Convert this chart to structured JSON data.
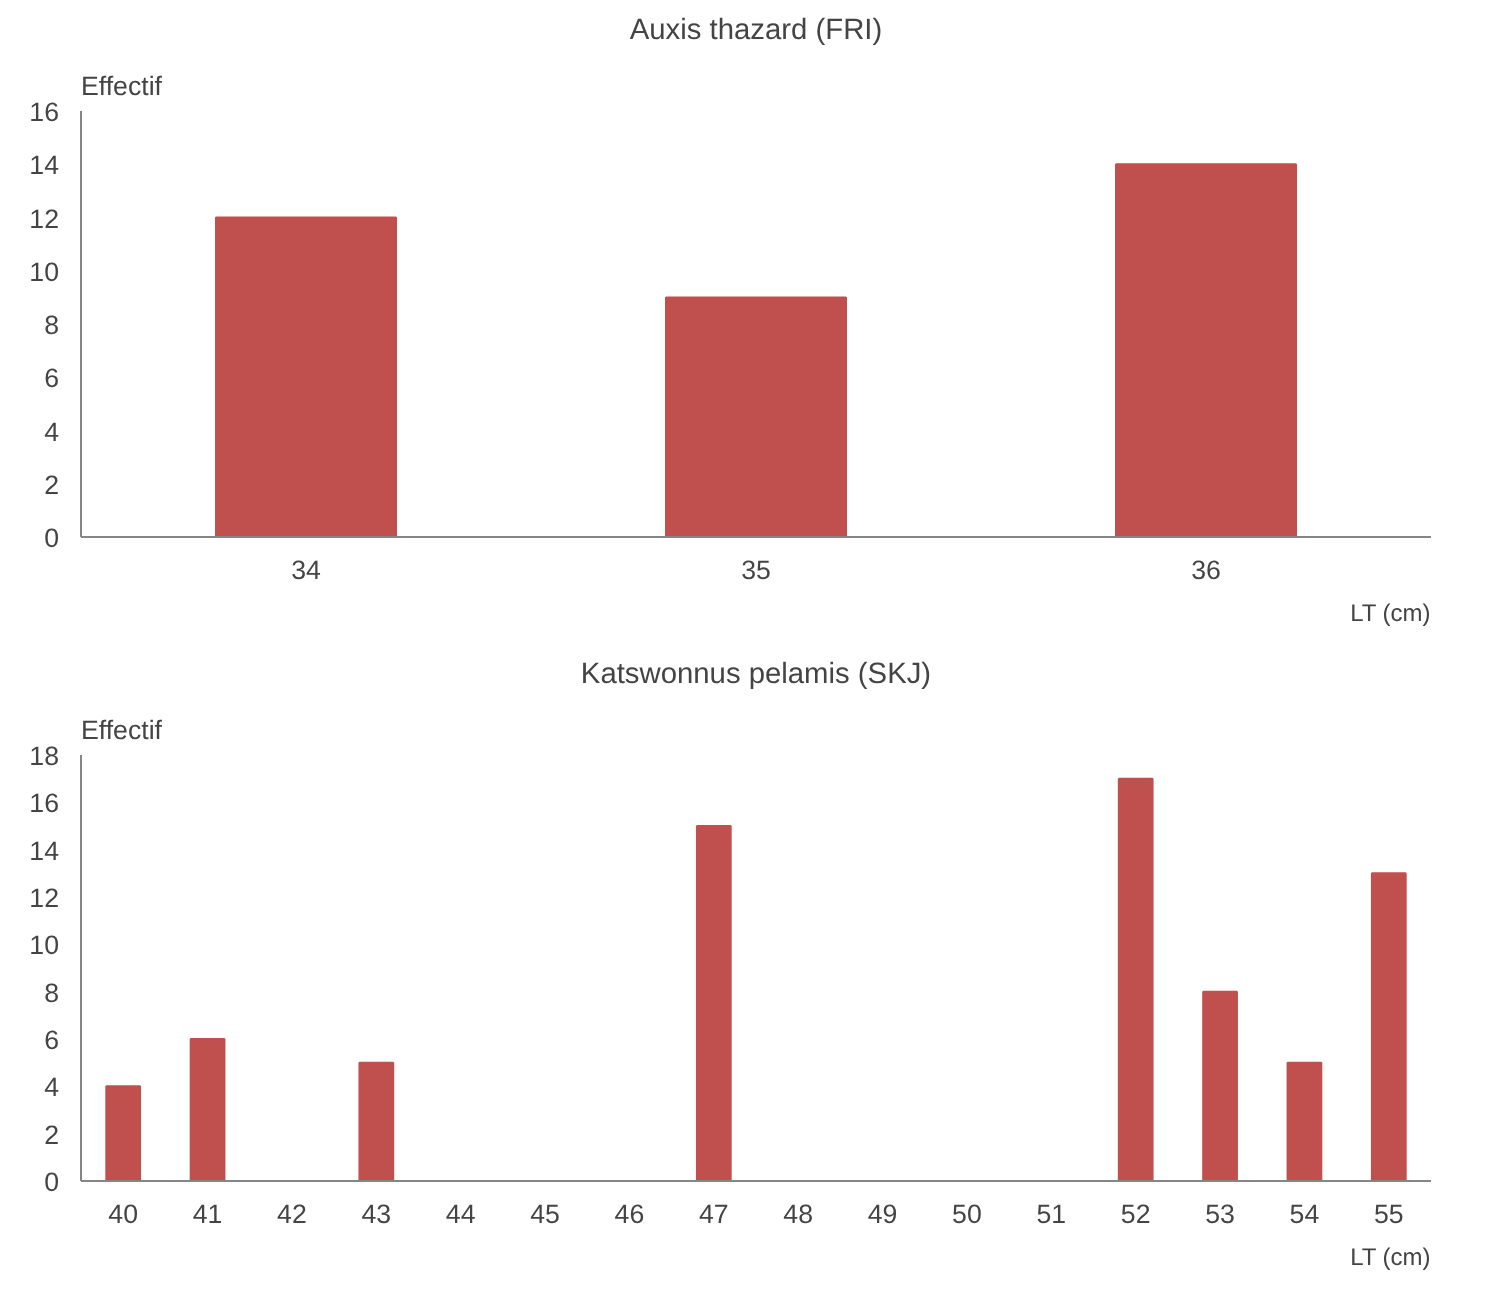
{
  "chart_data": [
    {
      "type": "bar",
      "title": "Auxis thazard (FRI)",
      "xlabel": "LT (cm)",
      "ylabel": "Effectif",
      "categories": [
        "34",
        "35",
        "36"
      ],
      "values": [
        12,
        9,
        14
      ],
      "color": "#c0504d",
      "ylim": [
        0,
        16
      ],
      "yticks": [
        0,
        2,
        4,
        6,
        8,
        10,
        12,
        14,
        16
      ],
      "grid": false
    },
    {
      "type": "bar",
      "title": "Katswonnus pelamis (SKJ)",
      "xlabel": "LT (cm)",
      "ylabel": "Effectif",
      "categories": [
        "40",
        "41",
        "42",
        "43",
        "44",
        "45",
        "46",
        "47",
        "48",
        "49",
        "50",
        "51",
        "52",
        "53",
        "54",
        "55"
      ],
      "values": [
        4,
        6,
        0,
        5,
        0,
        0,
        0,
        15,
        0,
        0,
        0,
        0,
        17,
        8,
        5,
        13
      ],
      "color": "#c0504d",
      "ylim": [
        0,
        18
      ],
      "yticks": [
        0,
        2,
        4,
        6,
        8,
        10,
        12,
        14,
        16,
        18
      ],
      "grid": false
    }
  ]
}
